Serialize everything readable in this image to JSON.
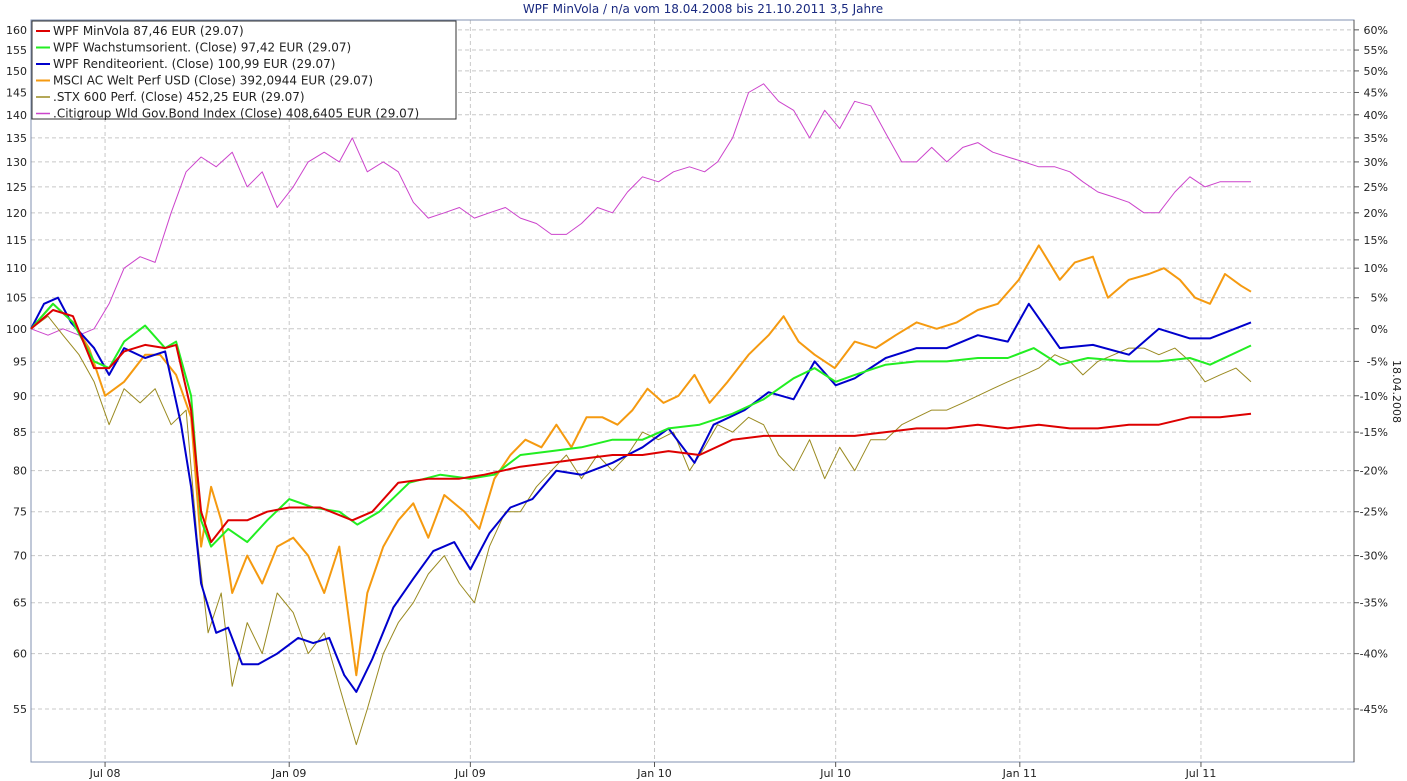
{
  "chart_data": {
    "type": "line",
    "title": "WPF MinVola / n/a vom 18.04.2008 bis 21.10.2011 3,5 Jahre",
    "right_axis_label": "18.04.2008",
    "x_start": "2008-04-18",
    "x_end": "2011-08-20",
    "x_ticks": [
      {
        "label": "Jul 08",
        "date": "2008-07-01"
      },
      {
        "label": "Jan 09",
        "date": "2009-01-01"
      },
      {
        "label": "Jul 09",
        "date": "2009-07-01"
      },
      {
        "label": "Jan 10",
        "date": "2010-01-01"
      },
      {
        "label": "Jul 10",
        "date": "2010-07-01"
      },
      {
        "label": "Jan 11",
        "date": "2011-01-01"
      },
      {
        "label": "Jul 11",
        "date": "2011-07-01"
      }
    ],
    "y_scale": "log",
    "y_range": [
      50.6,
      162.5
    ],
    "y_ticks": [
      55,
      60,
      65,
      70,
      75,
      80,
      85,
      90,
      95,
      100,
      105,
      110,
      115,
      120,
      125,
      130,
      135,
      140,
      145,
      150,
      155,
      160
    ],
    "y_ticks_right": [
      "60%",
      "55%",
      "50%",
      "45%",
      "40%",
      "35%",
      "30%",
      "25%",
      "20%",
      "15%",
      "10%",
      "5%",
      "0%",
      "-5%",
      "-10%",
      "-15%",
      "-20%",
      "-25%",
      "-30%",
      "-35%",
      "-40%",
      "-45%"
    ],
    "y_ticks_right_values": [
      160,
      155,
      150,
      145,
      140,
      135,
      130,
      125,
      120,
      115,
      110,
      105,
      100,
      95,
      90,
      85,
      80,
      75,
      70,
      65,
      60,
      55
    ],
    "grid": true,
    "legend_position": "top-left",
    "series": [
      {
        "name": "WPF MinVola 87,46 EUR (29.07)",
        "color": "#dd0000",
        "width": 2,
        "x": [
          "2008-04-18",
          "2008-05-10",
          "2008-05-30",
          "2008-06-20",
          "2008-07-05",
          "2008-07-20",
          "2008-08-10",
          "2008-08-30",
          "2008-09-10",
          "2008-09-25",
          "2008-10-05",
          "2008-10-15",
          "2008-11-01",
          "2008-11-20",
          "2008-12-10",
          "2009-01-01",
          "2009-02-01",
          "2009-03-05",
          "2009-03-25",
          "2009-04-20",
          "2009-05-20",
          "2009-06-20",
          "2009-07-15",
          "2009-08-20",
          "2009-09-20",
          "2009-10-20",
          "2009-11-20",
          "2009-12-20",
          "2010-01-15",
          "2010-02-15",
          "2010-03-20",
          "2010-04-20",
          "2010-05-20",
          "2010-06-20",
          "2010-07-20",
          "2010-08-20",
          "2010-09-20",
          "2010-10-20",
          "2010-11-20",
          "2010-12-20",
          "2011-01-20",
          "2011-02-20",
          "2011-03-20",
          "2011-04-20",
          "2011-05-20",
          "2011-06-20",
          "2011-07-20",
          "2011-08-20"
        ],
        "y": [
          100,
          103,
          102,
          94,
          94,
          96.5,
          97.5,
          97,
          97.5,
          88,
          75,
          71.5,
          74,
          74,
          75,
          75.5,
          75.5,
          74,
          75,
          78.5,
          79,
          79,
          79.5,
          80.5,
          81,
          81.5,
          82,
          82,
          82.5,
          82,
          84,
          84.5,
          84.5,
          84.5,
          84.5,
          85,
          85.5,
          85.5,
          86,
          85.5,
          86,
          85.5,
          85.5,
          86,
          86,
          87,
          87,
          87.5
        ]
      },
      {
        "name": "WPF Wachstumsorient. (Close) 97,42 EUR (29.07)",
        "color": "#22ee22",
        "width": 2,
        "x": [
          "2008-04-18",
          "2008-05-10",
          "2008-05-30",
          "2008-06-20",
          "2008-07-05",
          "2008-07-20",
          "2008-08-10",
          "2008-08-30",
          "2008-09-10",
          "2008-09-25",
          "2008-10-05",
          "2008-10-15",
          "2008-11-01",
          "2008-11-20",
          "2008-12-10",
          "2009-01-01",
          "2009-01-25",
          "2009-02-20",
          "2009-03-10",
          "2009-04-01",
          "2009-05-01",
          "2009-06-01",
          "2009-07-01",
          "2009-07-25",
          "2009-08-20",
          "2009-09-20",
          "2009-10-20",
          "2009-11-20",
          "2009-12-20",
          "2010-01-15",
          "2010-02-15",
          "2010-03-20",
          "2010-04-20",
          "2010-05-20",
          "2010-06-10",
          "2010-07-01",
          "2010-07-20",
          "2010-08-20",
          "2010-09-20",
          "2010-10-20",
          "2010-11-20",
          "2010-12-20",
          "2011-01-15",
          "2011-02-10",
          "2011-03-10",
          "2011-04-20",
          "2011-05-20",
          "2011-06-20",
          "2011-07-10",
          "2011-08-20"
        ],
        "y": [
          100,
          104,
          101,
          95,
          94,
          98,
          100.5,
          97,
          98,
          90,
          74,
          71,
          73,
          71.5,
          74,
          76.5,
          75.5,
          75,
          73.5,
          75,
          78.5,
          79.5,
          79,
          79.5,
          82,
          82.5,
          83,
          84,
          84,
          85.5,
          86,
          87.5,
          89.5,
          92.5,
          94,
          92,
          93,
          94.5,
          95,
          95,
          95.5,
          95.5,
          97,
          94.5,
          95.5,
          95,
          95,
          95.5,
          94.5,
          97.4
        ]
      },
      {
        "name": "WPF Renditeorient. (Close) 100,99 EUR (29.07)",
        "color": "#0000cc",
        "width": 2,
        "x": [
          "2008-04-18",
          "2008-05-01",
          "2008-05-15",
          "2008-05-28",
          "2008-06-20",
          "2008-07-05",
          "2008-07-20",
          "2008-08-10",
          "2008-08-30",
          "2008-09-15",
          "2008-09-25",
          "2008-10-05",
          "2008-10-20",
          "2008-11-01",
          "2008-11-15",
          "2008-12-01",
          "2008-12-20",
          "2009-01-10",
          "2009-01-25",
          "2009-02-10",
          "2009-02-25",
          "2009-03-09",
          "2009-03-25",
          "2009-04-15",
          "2009-05-05",
          "2009-05-25",
          "2009-06-15",
          "2009-07-01",
          "2009-07-20",
          "2009-08-10",
          "2009-09-01",
          "2009-09-25",
          "2009-10-20",
          "2009-11-20",
          "2009-12-20",
          "2010-01-15",
          "2010-02-10",
          "2010-03-01",
          "2010-04-01",
          "2010-04-25",
          "2010-05-20",
          "2010-06-10",
          "2010-07-01",
          "2010-07-20",
          "2010-08-20",
          "2010-09-20",
          "2010-10-20",
          "2010-11-20",
          "2010-12-20",
          "2011-01-10",
          "2011-02-10",
          "2011-03-15",
          "2011-04-20",
          "2011-05-20",
          "2011-06-20",
          "2011-07-10",
          "2011-08-20"
        ],
        "y": [
          100,
          104,
          105,
          101,
          97,
          93,
          97,
          95.5,
          96.5,
          86,
          78,
          67,
          62,
          62.5,
          59,
          59,
          60,
          61.5,
          61,
          61.5,
          58,
          56.5,
          59.5,
          64.5,
          67.5,
          70.5,
          71.5,
          68.5,
          72.5,
          75.5,
          76.5,
          80,
          79.5,
          81,
          83,
          85.5,
          81,
          86,
          88,
          90.5,
          89.5,
          95,
          91.5,
          92.5,
          95.5,
          97,
          97,
          99,
          98,
          104,
          97,
          97.5,
          96,
          100,
          98.5,
          98.5,
          101
        ]
      },
      {
        "name": "MSCI AC Welt Perf USD (Close) 392,0944 EUR (29.07)",
        "color": "#f59a10",
        "width": 2,
        "x": [
          "2008-04-18",
          "2008-05-10",
          "2008-05-30",
          "2008-06-15",
          "2008-07-01",
          "2008-07-20",
          "2008-08-10",
          "2008-08-25",
          "2008-09-10",
          "2008-09-25",
          "2008-10-05",
          "2008-10-15",
          "2008-10-25",
          "2008-11-05",
          "2008-11-20",
          "2008-12-05",
          "2008-12-20",
          "2009-01-05",
          "2009-01-20",
          "2009-02-05",
          "2009-02-20",
          "2009-03-02",
          "2009-03-09",
          "2009-03-20",
          "2009-04-05",
          "2009-04-20",
          "2009-05-05",
          "2009-05-20",
          "2009-06-05",
          "2009-06-25",
          "2009-07-10",
          "2009-07-25",
          "2009-08-10",
          "2009-08-25",
          "2009-09-10",
          "2009-09-25",
          "2009-10-10",
          "2009-10-25",
          "2009-11-10",
          "2009-11-25",
          "2009-12-10",
          "2009-12-25",
          "2010-01-10",
          "2010-01-25",
          "2010-02-10",
          "2010-02-25",
          "2010-03-15",
          "2010-04-05",
          "2010-04-25",
          "2010-05-10",
          "2010-05-25",
          "2010-06-10",
          "2010-06-30",
          "2010-07-20",
          "2010-08-10",
          "2010-08-30",
          "2010-09-20",
          "2010-10-10",
          "2010-10-30",
          "2010-11-20",
          "2010-12-10",
          "2010-12-31",
          "2011-01-20",
          "2011-02-10",
          "2011-02-25",
          "2011-03-15",
          "2011-03-30",
          "2011-04-20",
          "2011-05-10",
          "2011-05-25",
          "2011-06-10",
          "2011-06-25",
          "2011-07-10",
          "2011-07-25",
          "2011-08-10",
          "2011-08-20"
        ],
        "y": [
          100,
          104,
          101,
          97,
          90,
          92,
          96,
          96,
          93,
          87,
          71,
          78,
          74,
          66,
          70,
          67,
          71,
          72,
          70,
          66,
          71,
          63,
          58,
          66,
          71,
          74,
          76,
          72,
          77,
          75,
          73,
          79,
          82,
          84,
          83,
          86,
          83,
          87,
          87,
          86,
          88,
          91,
          89,
          90,
          93,
          89,
          92,
          96,
          99,
          102,
          98,
          96,
          94,
          98,
          97,
          99,
          101,
          100,
          101,
          103,
          104,
          108,
          114,
          108,
          111,
          112,
          105,
          108,
          109,
          110,
          108,
          105,
          104,
          109,
          107,
          106
        ]
      },
      {
        "name": ".STX 600 Perf. (Close) 452,25 EUR (29.07)",
        "color": "#9a8a20",
        "width": 1,
        "x": [
          "2008-04-18",
          "2008-05-05",
          "2008-05-20",
          "2008-06-05",
          "2008-06-20",
          "2008-07-05",
          "2008-07-20",
          "2008-08-05",
          "2008-08-20",
          "2008-09-05",
          "2008-09-20",
          "2008-10-01",
          "2008-10-12",
          "2008-10-25",
          "2008-11-05",
          "2008-11-20",
          "2008-12-05",
          "2008-12-20",
          "2009-01-05",
          "2009-01-20",
          "2009-02-05",
          "2009-02-20",
          "2009-03-02",
          "2009-03-09",
          "2009-03-20",
          "2009-04-05",
          "2009-04-20",
          "2009-05-05",
          "2009-05-20",
          "2009-06-05",
          "2009-06-20",
          "2009-07-05",
          "2009-07-20",
          "2009-08-05",
          "2009-08-20",
          "2009-09-05",
          "2009-09-20",
          "2009-10-05",
          "2009-10-20",
          "2009-11-05",
          "2009-11-20",
          "2009-12-05",
          "2009-12-20",
          "2010-01-05",
          "2010-01-20",
          "2010-02-05",
          "2010-02-20",
          "2010-03-05",
          "2010-03-20",
          "2010-04-05",
          "2010-04-20",
          "2010-05-05",
          "2010-05-20",
          "2010-06-05",
          "2010-06-20",
          "2010-07-05",
          "2010-07-20",
          "2010-08-05",
          "2010-08-20",
          "2010-09-05",
          "2010-09-20",
          "2010-10-05",
          "2010-10-20",
          "2010-11-05",
          "2010-11-20",
          "2010-12-05",
          "2010-12-20",
          "2011-01-05",
          "2011-01-20",
          "2011-02-05",
          "2011-02-20",
          "2011-03-05",
          "2011-03-20",
          "2011-04-05",
          "2011-04-20",
          "2011-05-05",
          "2011-05-20",
          "2011-06-05",
          "2011-06-20",
          "2011-07-05",
          "2011-07-20",
          "2011-08-05",
          "2011-08-20"
        ],
        "y": [
          100,
          102,
          99,
          96,
          92,
          86,
          91,
          89,
          91,
          86,
          88,
          72,
          62,
          66,
          57,
          63,
          60,
          66,
          64,
          60,
          62,
          57,
          54,
          52,
          55,
          60,
          63,
          65,
          68,
          70,
          67,
          65,
          71,
          75,
          75,
          78,
          80,
          82,
          79,
          82,
          80,
          82,
          85,
          84,
          85,
          80,
          83,
          86,
          85,
          87,
          86,
          82,
          80,
          84,
          79,
          83,
          80,
          84,
          84,
          86,
          87,
          88,
          88,
          89,
          90,
          91,
          92,
          93,
          94,
          96,
          95,
          93,
          95,
          96,
          97,
          97,
          96,
          97,
          95,
          92,
          93,
          94,
          92
        ]
      },
      {
        "name": ".Citigroup Wld Gov.Bond Index (Close) 408,6405 EUR (29.07)",
        "color": "#cc44cc",
        "width": 1,
        "x": [
          "2008-04-18",
          "2008-05-05",
          "2008-05-20",
          "2008-06-05",
          "2008-06-20",
          "2008-07-05",
          "2008-07-20",
          "2008-08-05",
          "2008-08-20",
          "2008-09-05",
          "2008-09-20",
          "2008-10-05",
          "2008-10-20",
          "2008-11-05",
          "2008-11-20",
          "2008-12-05",
          "2008-12-20",
          "2009-01-05",
          "2009-01-20",
          "2009-02-05",
          "2009-02-20",
          "2009-03-05",
          "2009-03-20",
          "2009-04-05",
          "2009-04-20",
          "2009-05-05",
          "2009-05-20",
          "2009-06-05",
          "2009-06-20",
          "2009-07-05",
          "2009-07-20",
          "2009-08-05",
          "2009-08-20",
          "2009-09-05",
          "2009-09-20",
          "2009-10-05",
          "2009-10-20",
          "2009-11-05",
          "2009-11-20",
          "2009-12-05",
          "2009-12-20",
          "2010-01-05",
          "2010-01-20",
          "2010-02-05",
          "2010-02-20",
          "2010-03-05",
          "2010-03-20",
          "2010-04-05",
          "2010-04-20",
          "2010-05-05",
          "2010-05-20",
          "2010-06-05",
          "2010-06-20",
          "2010-07-05",
          "2010-07-20",
          "2010-08-05",
          "2010-08-20",
          "2010-09-05",
          "2010-09-20",
          "2010-10-05",
          "2010-10-20",
          "2010-11-05",
          "2010-11-20",
          "2010-12-05",
          "2010-12-20",
          "2011-01-05",
          "2011-01-20",
          "2011-02-05",
          "2011-02-20",
          "2011-03-05",
          "2011-03-20",
          "2011-04-05",
          "2011-04-20",
          "2011-05-05",
          "2011-05-20",
          "2011-06-05",
          "2011-06-20",
          "2011-07-05",
          "2011-07-20",
          "2011-08-05",
          "2011-08-20"
        ],
        "y": [
          100,
          99,
          100,
          99,
          100,
          104,
          110,
          112,
          111,
          120,
          128,
          131,
          129,
          132,
          125,
          128,
          121,
          125,
          130,
          132,
          130,
          135,
          128,
          130,
          128,
          122,
          119,
          120,
          121,
          119,
          120,
          121,
          119,
          118,
          116,
          116,
          118,
          121,
          120,
          124,
          127,
          126,
          128,
          129,
          128,
          130,
          135,
          145,
          147,
          143,
          141,
          135,
          141,
          137,
          143,
          142,
          136,
          130,
          130,
          133,
          130,
          133,
          134,
          132,
          131,
          130,
          129,
          129,
          128,
          126,
          124,
          123,
          122,
          120,
          120,
          124,
          127,
          125,
          126,
          126,
          126
        ]
      }
    ]
  }
}
